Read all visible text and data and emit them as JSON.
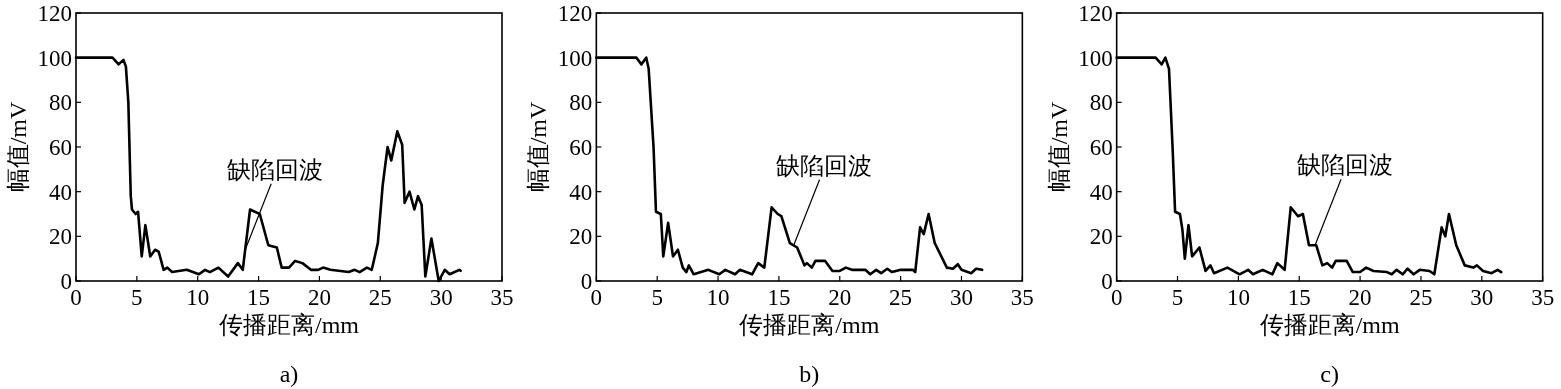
{
  "chart_data": [
    {
      "type": "line",
      "xlabel": "传播距离/mm",
      "ylabel": "幅值/mV",
      "xlim": [
        0,
        35
      ],
      "xticks": [
        0,
        5,
        10,
        15,
        20,
        25,
        30,
        35
      ],
      "ylim": [
        0,
        120
      ],
      "yticks": [
        0,
        20,
        40,
        60,
        80,
        100,
        120
      ],
      "annotations": [
        {
          "text": "缺陷回波",
          "x": 13.9,
          "y": 14
        },
        "a)"
      ],
      "series": [
        {
          "color": "#000000",
          "x": [
            0,
            3.0,
            3.5,
            3.9,
            4.1,
            4.3,
            4.5,
            4.6,
            4.9,
            5.1,
            5.4,
            5.7,
            6.1,
            6.5,
            6.8,
            7.2,
            7.5,
            7.9,
            9.1,
            10.1,
            10.6,
            11.0,
            11.7,
            12.5,
            13.3,
            13.7,
            14.3,
            15.1,
            15.8,
            16.5,
            16.9,
            17.5,
            18.0,
            18.6,
            19.3,
            19.9,
            20.3,
            20.9,
            22.4,
            22.9,
            23.3,
            23.9,
            24.3,
            24.8,
            25.2,
            25.6,
            25.9,
            26.4,
            26.8,
            27.0,
            27.4,
            27.8,
            28.1,
            28.4,
            28.7,
            29.2,
            29.8,
            30.3,
            30.7,
            31.5,
            31.6
          ],
          "values": [
            100,
            100,
            97,
            99,
            96,
            80,
            38,
            32,
            30,
            31,
            11,
            25,
            11,
            14,
            13,
            5,
            6,
            4,
            5,
            3,
            5,
            4,
            6,
            2,
            8,
            5,
            32,
            30,
            16,
            15,
            6,
            6,
            9,
            8,
            5,
            5,
            6,
            5,
            4,
            5,
            4,
            6,
            5,
            17,
            43,
            60,
            54,
            67,
            61,
            35,
            40,
            32,
            38,
            34,
            2,
            19,
            0,
            5,
            3,
            5,
            4.6
          ]
        }
      ]
    },
    {
      "type": "line",
      "xlabel": "传播距离/mm",
      "ylabel": "幅值/mV",
      "xlim": [
        0,
        35
      ],
      "xticks": [
        0,
        5,
        10,
        15,
        20,
        25,
        30,
        35
      ],
      "ylim": [
        0,
        120
      ],
      "yticks": [
        0,
        20,
        40,
        60,
        80,
        100,
        120
      ],
      "annotations": [
        {
          "text": "缺陷回波",
          "x": 16.2,
          "y": 15.8
        },
        "b)"
      ],
      "series": [
        {
          "color": "#000000",
          "x": [
            0,
            3.3,
            3.7,
            4.1,
            4.3,
            4.7,
            4.9,
            5.3,
            5.5,
            5.9,
            6.3,
            6.7,
            7.1,
            7.4,
            7.6,
            8.0,
            9.2,
            10.1,
            10.6,
            11.4,
            11.8,
            12.8,
            13.3,
            13.8,
            14.4,
            14.9,
            15.2,
            15.9,
            16.5,
            17.1,
            17.3,
            17.7,
            18.0,
            18.8,
            19.4,
            20.0,
            20.5,
            21.0,
            22.1,
            22.5,
            23.0,
            23.4,
            23.9,
            24.3,
            25.0,
            26.0,
            26.2,
            26.6,
            26.9,
            27.3,
            27.8,
            28.8,
            29.3,
            29.7,
            30.0,
            30.8,
            31.2,
            31.7
          ],
          "values": [
            100,
            100,
            97,
            100,
            95,
            60,
            31,
            30,
            11,
            26,
            11,
            14,
            6,
            4,
            7,
            3,
            5,
            3,
            5,
            3,
            5,
            3,
            8,
            6,
            33,
            30,
            29,
            17,
            15,
            7,
            8,
            6,
            9,
            9,
            4.5,
            4.5,
            6,
            5,
            5,
            3,
            5,
            3.5,
            5.5,
            4,
            5,
            5,
            4,
            24,
            21,
            30,
            17,
            6,
            5.5,
            7.5,
            5,
            3.5,
            5.5,
            5
          ]
        }
      ]
    },
    {
      "type": "line",
      "xlabel": "传播距离/mm",
      "ylabel": "幅值/mV",
      "xlim": [
        0,
        35
      ],
      "xticks": [
        0,
        5,
        10,
        15,
        20,
        25,
        30,
        35
      ],
      "ylim": [
        0,
        120
      ],
      "yticks": [
        0,
        20,
        40,
        60,
        80,
        100,
        120
      ],
      "annotations": [
        {
          "text": "缺陷回波",
          "x": 16.3,
          "y": 16
        },
        "c)"
      ],
      "series": [
        {
          "color": "#000000",
          "x": [
            0,
            3.2,
            3.7,
            4.0,
            4.3,
            4.6,
            4.8,
            5.2,
            5.4,
            5.6,
            5.9,
            6.2,
            6.8,
            7.3,
            7.7,
            8.0,
            9.1,
            10.1,
            10.8,
            11.2,
            12.0,
            12.8,
            13.2,
            13.8,
            14.3,
            14.9,
            15.3,
            15.8,
            16.4,
            16.9,
            17.3,
            17.7,
            18.0,
            18.9,
            19.4,
            20.0,
            20.5,
            21.1,
            22.2,
            22.6,
            23.0,
            23.5,
            23.9,
            24.4,
            24.9,
            25.7,
            26.1,
            26.7,
            27.0,
            27.3,
            27.9,
            28.6,
            29.3,
            29.6,
            30.1,
            30.8,
            31.3,
            31.6
          ],
          "values": [
            100,
            100,
            97,
            100,
            95,
            59,
            31,
            30,
            23,
            10,
            25,
            11,
            15,
            4.5,
            7,
            3.5,
            6,
            3,
            5,
            3,
            5,
            3,
            8,
            5,
            33,
            29,
            30,
            16,
            16,
            7,
            8,
            6,
            9,
            9,
            4,
            4,
            6,
            4.5,
            4,
            3,
            5,
            3,
            5.5,
            3,
            5,
            4.5,
            3,
            24,
            20,
            30,
            16,
            7,
            6,
            7,
            4.5,
            3.5,
            5,
            4
          ]
        }
      ]
    }
  ]
}
